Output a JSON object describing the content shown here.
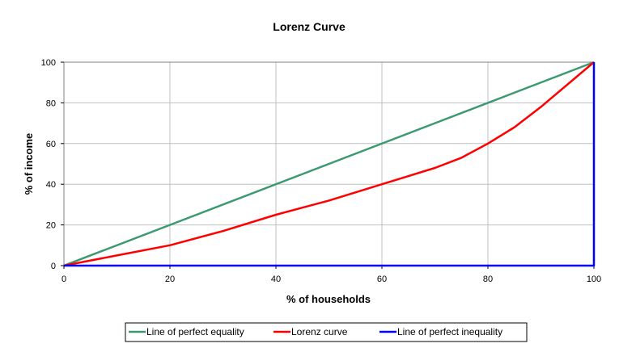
{
  "chart_data": {
    "type": "line",
    "title": "Lorenz Curve",
    "xlabel": "% of households",
    "ylabel": "% of income",
    "xlim": [
      0,
      100
    ],
    "ylim": [
      0,
      100
    ],
    "xticks": [
      "0",
      "20",
      "40",
      "60",
      "80",
      "100"
    ],
    "yticks": [
      "0",
      "20",
      "40",
      "60",
      "80",
      "100"
    ],
    "grid": true,
    "legend_position": "bottom",
    "series": [
      {
        "name": "Line of perfect equality",
        "color": "#3d9970",
        "points": [
          [
            0,
            0
          ],
          [
            100,
            100
          ]
        ]
      },
      {
        "name": "Lorenz curve",
        "color": "#ff0000",
        "points": [
          [
            0,
            0
          ],
          [
            10,
            5
          ],
          [
            20,
            10
          ],
          [
            30,
            17
          ],
          [
            40,
            25
          ],
          [
            50,
            32
          ],
          [
            60,
            40
          ],
          [
            70,
            48
          ],
          [
            75,
            53
          ],
          [
            80,
            60
          ],
          [
            85,
            68
          ],
          [
            90,
            78
          ],
          [
            100,
            100
          ]
        ]
      },
      {
        "name": "Line of perfect inequality",
        "color": "#0000ff",
        "points": [
          [
            0,
            0
          ],
          [
            100,
            0
          ],
          [
            100,
            100
          ]
        ]
      }
    ]
  }
}
